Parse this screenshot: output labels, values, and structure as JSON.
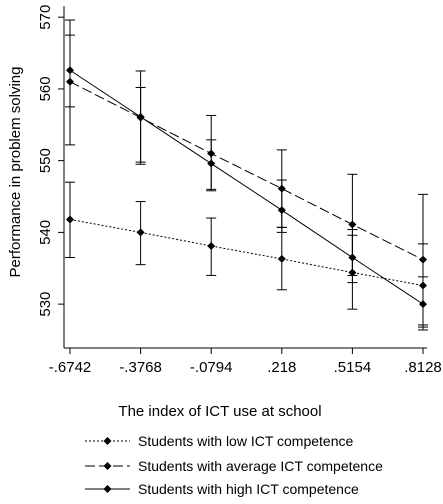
{
  "chart_data": {
    "type": "line",
    "title": "",
    "xlabel": "The index of ICT use at school",
    "ylabel": "Performance in problem solving",
    "x": [
      -0.6742,
      -0.3768,
      -0.0794,
      0.218,
      0.5154,
      0.8128
    ],
    "x_tick_labels": [
      "-.6742",
      "-.3768",
      "-.0794",
      ".218",
      ".5154",
      ".8128"
    ],
    "y_ticks": [
      530,
      540,
      550,
      560,
      570
    ],
    "y_tick_labels": [
      "530",
      "540",
      "550",
      "560",
      "570"
    ],
    "xlim": [
      -0.6742,
      0.8128
    ],
    "ylim": [
      525,
      571
    ],
    "grid": false,
    "legend_position": "bottom",
    "series": [
      {
        "name": "Students with low ICT competence",
        "line_style": "dotted",
        "color": "#000000",
        "values": [
          541.8,
          540.0,
          538.1,
          536.3,
          534.4,
          532.6
        ],
        "ci_lower": [
          536.5,
          535.5,
          534.0,
          532.0,
          529.3,
          526.8
        ],
        "ci_upper": [
          547.0,
          544.3,
          542.0,
          540.7,
          539.6,
          538.4
        ]
      },
      {
        "name": "Students with average ICT competence",
        "line_style": "dashed",
        "color": "#000000",
        "values": [
          561.0,
          556.0,
          551.0,
          546.1,
          541.1,
          536.2
        ],
        "ci_lower": [
          552.2,
          549.5,
          545.8,
          540.7,
          534.0,
          527.1
        ],
        "ci_upper": [
          569.6,
          562.5,
          556.3,
          551.5,
          548.1,
          545.3
        ]
      },
      {
        "name": "Students with high ICT competence",
        "line_style": "solid",
        "color": "#000000",
        "values": [
          562.6,
          556.1,
          549.6,
          543.1,
          536.5,
          530.0
        ],
        "ci_lower": [
          557.5,
          549.8,
          546.0,
          540.0,
          533.0,
          526.4
        ],
        "ci_upper": [
          567.5,
          560.2,
          552.9,
          547.3,
          540.4,
          533.8
        ]
      }
    ]
  }
}
